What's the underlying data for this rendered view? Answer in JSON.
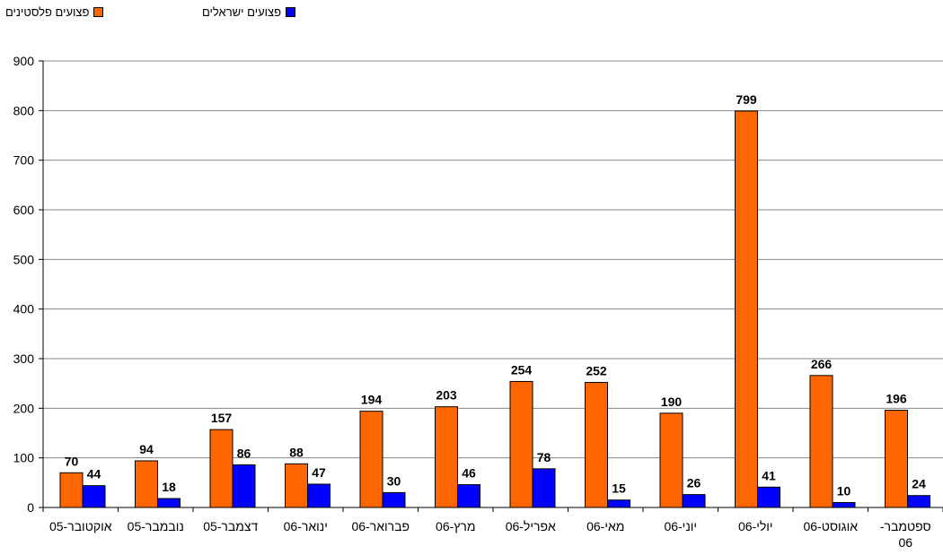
{
  "chart_data": {
    "type": "bar",
    "categories": [
      [
        "אוקטובר-05"
      ],
      [
        "נובמבר-05"
      ],
      [
        "דצמבר-05"
      ],
      [
        "ינואר-06"
      ],
      [
        "פברואר-06"
      ],
      [
        "מרץ-06"
      ],
      [
        "אפריל-06"
      ],
      [
        "מאי-06"
      ],
      [
        "יוני-06"
      ],
      [
        "יולי-06"
      ],
      [
        "אוגוסט-06"
      ],
      [
        "ספטמבר-",
        "06"
      ]
    ],
    "series": [
      {
        "name": "פצועים פלסטינים",
        "color": "#ff6600",
        "values": [
          70,
          94,
          157,
          88,
          194,
          203,
          254,
          252,
          190,
          799,
          266,
          196
        ]
      },
      {
        "name": "פצועים ישראלים",
        "color": "#0000ff",
        "values": [
          44,
          18,
          86,
          47,
          30,
          46,
          78,
          15,
          26,
          41,
          10,
          24
        ]
      }
    ],
    "ylim": [
      0,
      900
    ],
    "yticks": [
      0,
      100,
      200,
      300,
      400,
      500,
      600,
      700,
      800,
      900
    ],
    "grid": true,
    "legend_position": "top-left"
  }
}
